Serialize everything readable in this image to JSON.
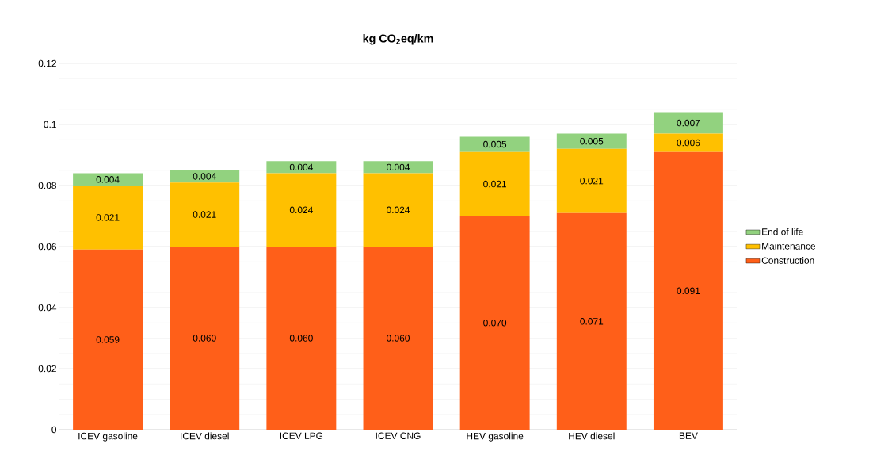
{
  "chart_data": {
    "type": "bar",
    "title": "kg CO$_{2}$eq/km",
    "stacked": true,
    "categories": [
      "ICEV gasoline",
      "ICEV diesel",
      "ICEV LPG",
      "ICEV CNG",
      "HEV gasoline",
      "HEV diesel",
      "BEV"
    ],
    "series": [
      {
        "name": "Construction",
        "color": "#ff5f19",
        "values": [
          0.059,
          0.06,
          0.06,
          0.06,
          0.07,
          0.071,
          0.091
        ],
        "value_labels": [
          "0.059",
          "0.060",
          "0.060",
          "0.060",
          "0.070",
          "0.071",
          "0.091"
        ]
      },
      {
        "name": "Maintenance",
        "color": "#ffc000",
        "values": [
          0.021,
          0.021,
          0.024,
          0.024,
          0.021,
          0.021,
          0.006
        ],
        "value_labels": [
          "0.021",
          "0.021",
          "0.024",
          "0.024",
          "0.021",
          "0.021",
          "0.006"
        ]
      },
      {
        "name": "End of life",
        "color": "#92d27f",
        "values": [
          0.004,
          0.004,
          0.004,
          0.004,
          0.005,
          0.005,
          0.007
        ],
        "value_labels": [
          "0.004",
          "0.004",
          "0.004",
          "0.004",
          "0.005",
          "0.005",
          "0.007"
        ]
      }
    ],
    "ylim": [
      0,
      0.12
    ],
    "yticks": [
      0,
      0.02,
      0.04,
      0.06,
      0.08,
      0.1,
      0.12
    ],
    "grid": "y",
    "legend": "right"
  }
}
